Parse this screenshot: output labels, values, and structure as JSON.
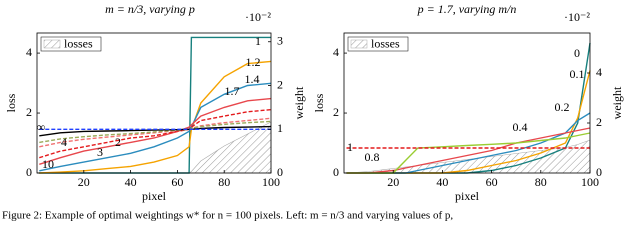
{
  "chart_data": [
    {
      "type": "line",
      "title": "m = n/3, varying p",
      "xlabel": "pixel",
      "ylabel": "loss",
      "y2label": "weight",
      "y2_scale_label": "·10⁻²",
      "x": [
        1,
        10,
        20,
        30,
        40,
        50,
        60,
        65,
        66,
        70,
        80,
        90,
        100
      ],
      "xlim": [
        0,
        100
      ],
      "xticks": [
        20,
        40,
        60,
        80,
        100
      ],
      "ylim": [
        0,
        4.67
      ],
      "yticks": [
        0,
        2,
        4
      ],
      "y2lim": [
        0,
        3.2
      ],
      "y2ticks": [
        0,
        1,
        2,
        3
      ],
      "legend": "upper left",
      "series": [
        {
          "name": "losses",
          "type": "area",
          "hatch": true,
          "color": "#aaaaaa",
          "values": [
            0,
            0,
            0,
            0,
            0,
            0,
            0,
            0,
            0.05,
            0.4,
            0.9,
            1.3,
            1.7
          ]
        },
        {
          "name": "1",
          "color": "#17807e",
          "axis": "y2",
          "values": [
            0,
            0,
            0,
            0,
            0,
            0,
            0,
            0,
            3.1,
            3.1,
            3.1,
            3.1,
            3.1
          ]
        },
        {
          "name": "1.2",
          "color": "#f5a300",
          "axis": "y2",
          "values": [
            0,
            0.02,
            0.05,
            0.1,
            0.15,
            0.25,
            0.4,
            0.6,
            1.0,
            1.6,
            2.2,
            2.5,
            2.55
          ]
        },
        {
          "name": "1.4",
          "color": "#2b8cbe",
          "axis": "y2",
          "values": [
            0.05,
            0.15,
            0.25,
            0.35,
            0.45,
            0.6,
            0.8,
            0.95,
            1.05,
            1.5,
            1.8,
            2.0,
            2.05
          ]
        },
        {
          "name": "1.7",
          "color": "#e8474c",
          "axis": "y2",
          "values": [
            0.2,
            0.35,
            0.5,
            0.6,
            0.7,
            0.8,
            0.95,
            1.05,
            1.1,
            1.3,
            1.5,
            1.65,
            1.7
          ]
        },
        {
          "name": "2",
          "color": "#e41a1c",
          "dash": true,
          "axis": "y2",
          "values": [
            0.35,
            0.5,
            0.6,
            0.7,
            0.8,
            0.85,
            0.95,
            1.0,
            1.05,
            1.2,
            1.3,
            1.4,
            1.45
          ]
        },
        {
          "name": "3",
          "color": "#f07070",
          "dash": true,
          "axis": "y2",
          "values": [
            0.6,
            0.7,
            0.77,
            0.82,
            0.87,
            0.92,
            0.97,
            1.0,
            1.02,
            1.08,
            1.15,
            1.2,
            1.25
          ]
        },
        {
          "name": "4",
          "color": "#9aab5a",
          "dash": true,
          "axis": "y2",
          "values": [
            0.7,
            0.78,
            0.83,
            0.87,
            0.9,
            0.94,
            0.98,
            1.0,
            1.02,
            1.06,
            1.11,
            1.15,
            1.18
          ]
        },
        {
          "name": "10",
          "color": "#000000",
          "axis": "y2",
          "values": [
            0.85,
            0.92,
            0.95,
            0.96,
            0.97,
            0.98,
            0.99,
            1.0,
            1.0,
            1.02,
            1.04,
            1.05,
            1.06
          ]
        },
        {
          "name": "∞",
          "color": "#1f3fff",
          "dash": true,
          "axis": "y2",
          "values": [
            1.0,
            1.0,
            1.0,
            1.0,
            1.0,
            1.0,
            1.0,
            1.0,
            1.0,
            1.0,
            1.0,
            1.0,
            1.0
          ]
        }
      ]
    },
    {
      "type": "line",
      "title": "p = 1.7, varying m/n",
      "xlabel": "pixel",
      "ylabel": "loss",
      "y2label": "weight",
      "y2_scale_label": "·10⁻²",
      "x": [
        1,
        10,
        20,
        25,
        30,
        40,
        50,
        60,
        70,
        80,
        90,
        95,
        100
      ],
      "xlim": [
        0,
        100
      ],
      "xticks": [
        20,
        40,
        60,
        80,
        100
      ],
      "ylim": [
        0,
        4.67
      ],
      "yticks": [
        0,
        2,
        4
      ],
      "y2lim": [
        0,
        5.6
      ],
      "y2ticks": [
        0,
        2,
        4
      ],
      "legend": "upper left",
      "series": [
        {
          "name": "losses",
          "type": "area",
          "hatch": true,
          "color": "#aaaaaa",
          "values": [
            0,
            0.05,
            0.15,
            0.2,
            0.25,
            0.35,
            0.45,
            0.55,
            0.65,
            0.75,
            0.85,
            0.95,
            1.1
          ]
        },
        {
          "name": "0",
          "color": "#17807e",
          "axis": "y2",
          "values": [
            0,
            0,
            0,
            0,
            0,
            0,
            0,
            0.1,
            0.3,
            0.6,
            1.0,
            2.0,
            5.2
          ]
        },
        {
          "name": "0.1",
          "color": "#f5a300",
          "axis": "y2",
          "values": [
            0,
            0,
            0,
            0,
            0,
            0,
            0.1,
            0.3,
            0.5,
            0.8,
            1.2,
            2.2,
            4.1
          ]
        },
        {
          "name": "0.2",
          "color": "#2b8cbe",
          "axis": "y2",
          "values": [
            0,
            0,
            0,
            0,
            0.1,
            0.3,
            0.5,
            0.7,
            0.9,
            1.2,
            1.6,
            2.1,
            2.4
          ]
        },
        {
          "name": "0.4",
          "color": "#e8474c",
          "axis": "y2",
          "values": [
            0,
            0,
            0.1,
            0.2,
            0.3,
            0.5,
            0.7,
            0.9,
            1.2,
            1.4,
            1.6,
            1.7,
            1.8
          ]
        },
        {
          "name": "0.8",
          "color": "#9acd32",
          "axis": "y2",
          "values": [
            0,
            0,
            0,
            0.5,
            1.0,
            1.05,
            1.1,
            1.15,
            1.2,
            1.3,
            1.4,
            1.5,
            1.6
          ]
        },
        {
          "name": "1",
          "color": "#e41a1c",
          "dash": true,
          "axis": "y2",
          "values": [
            1.0,
            1.0,
            1.0,
            1.0,
            1.0,
            1.0,
            1.0,
            1.0,
            1.0,
            1.0,
            1.0,
            1.0,
            1.0
          ]
        }
      ]
    }
  ],
  "caption": "Figure 2: Example of optimal weightings w* for n = 100 pixels. Left: m = n/3 and varying values of p,"
}
